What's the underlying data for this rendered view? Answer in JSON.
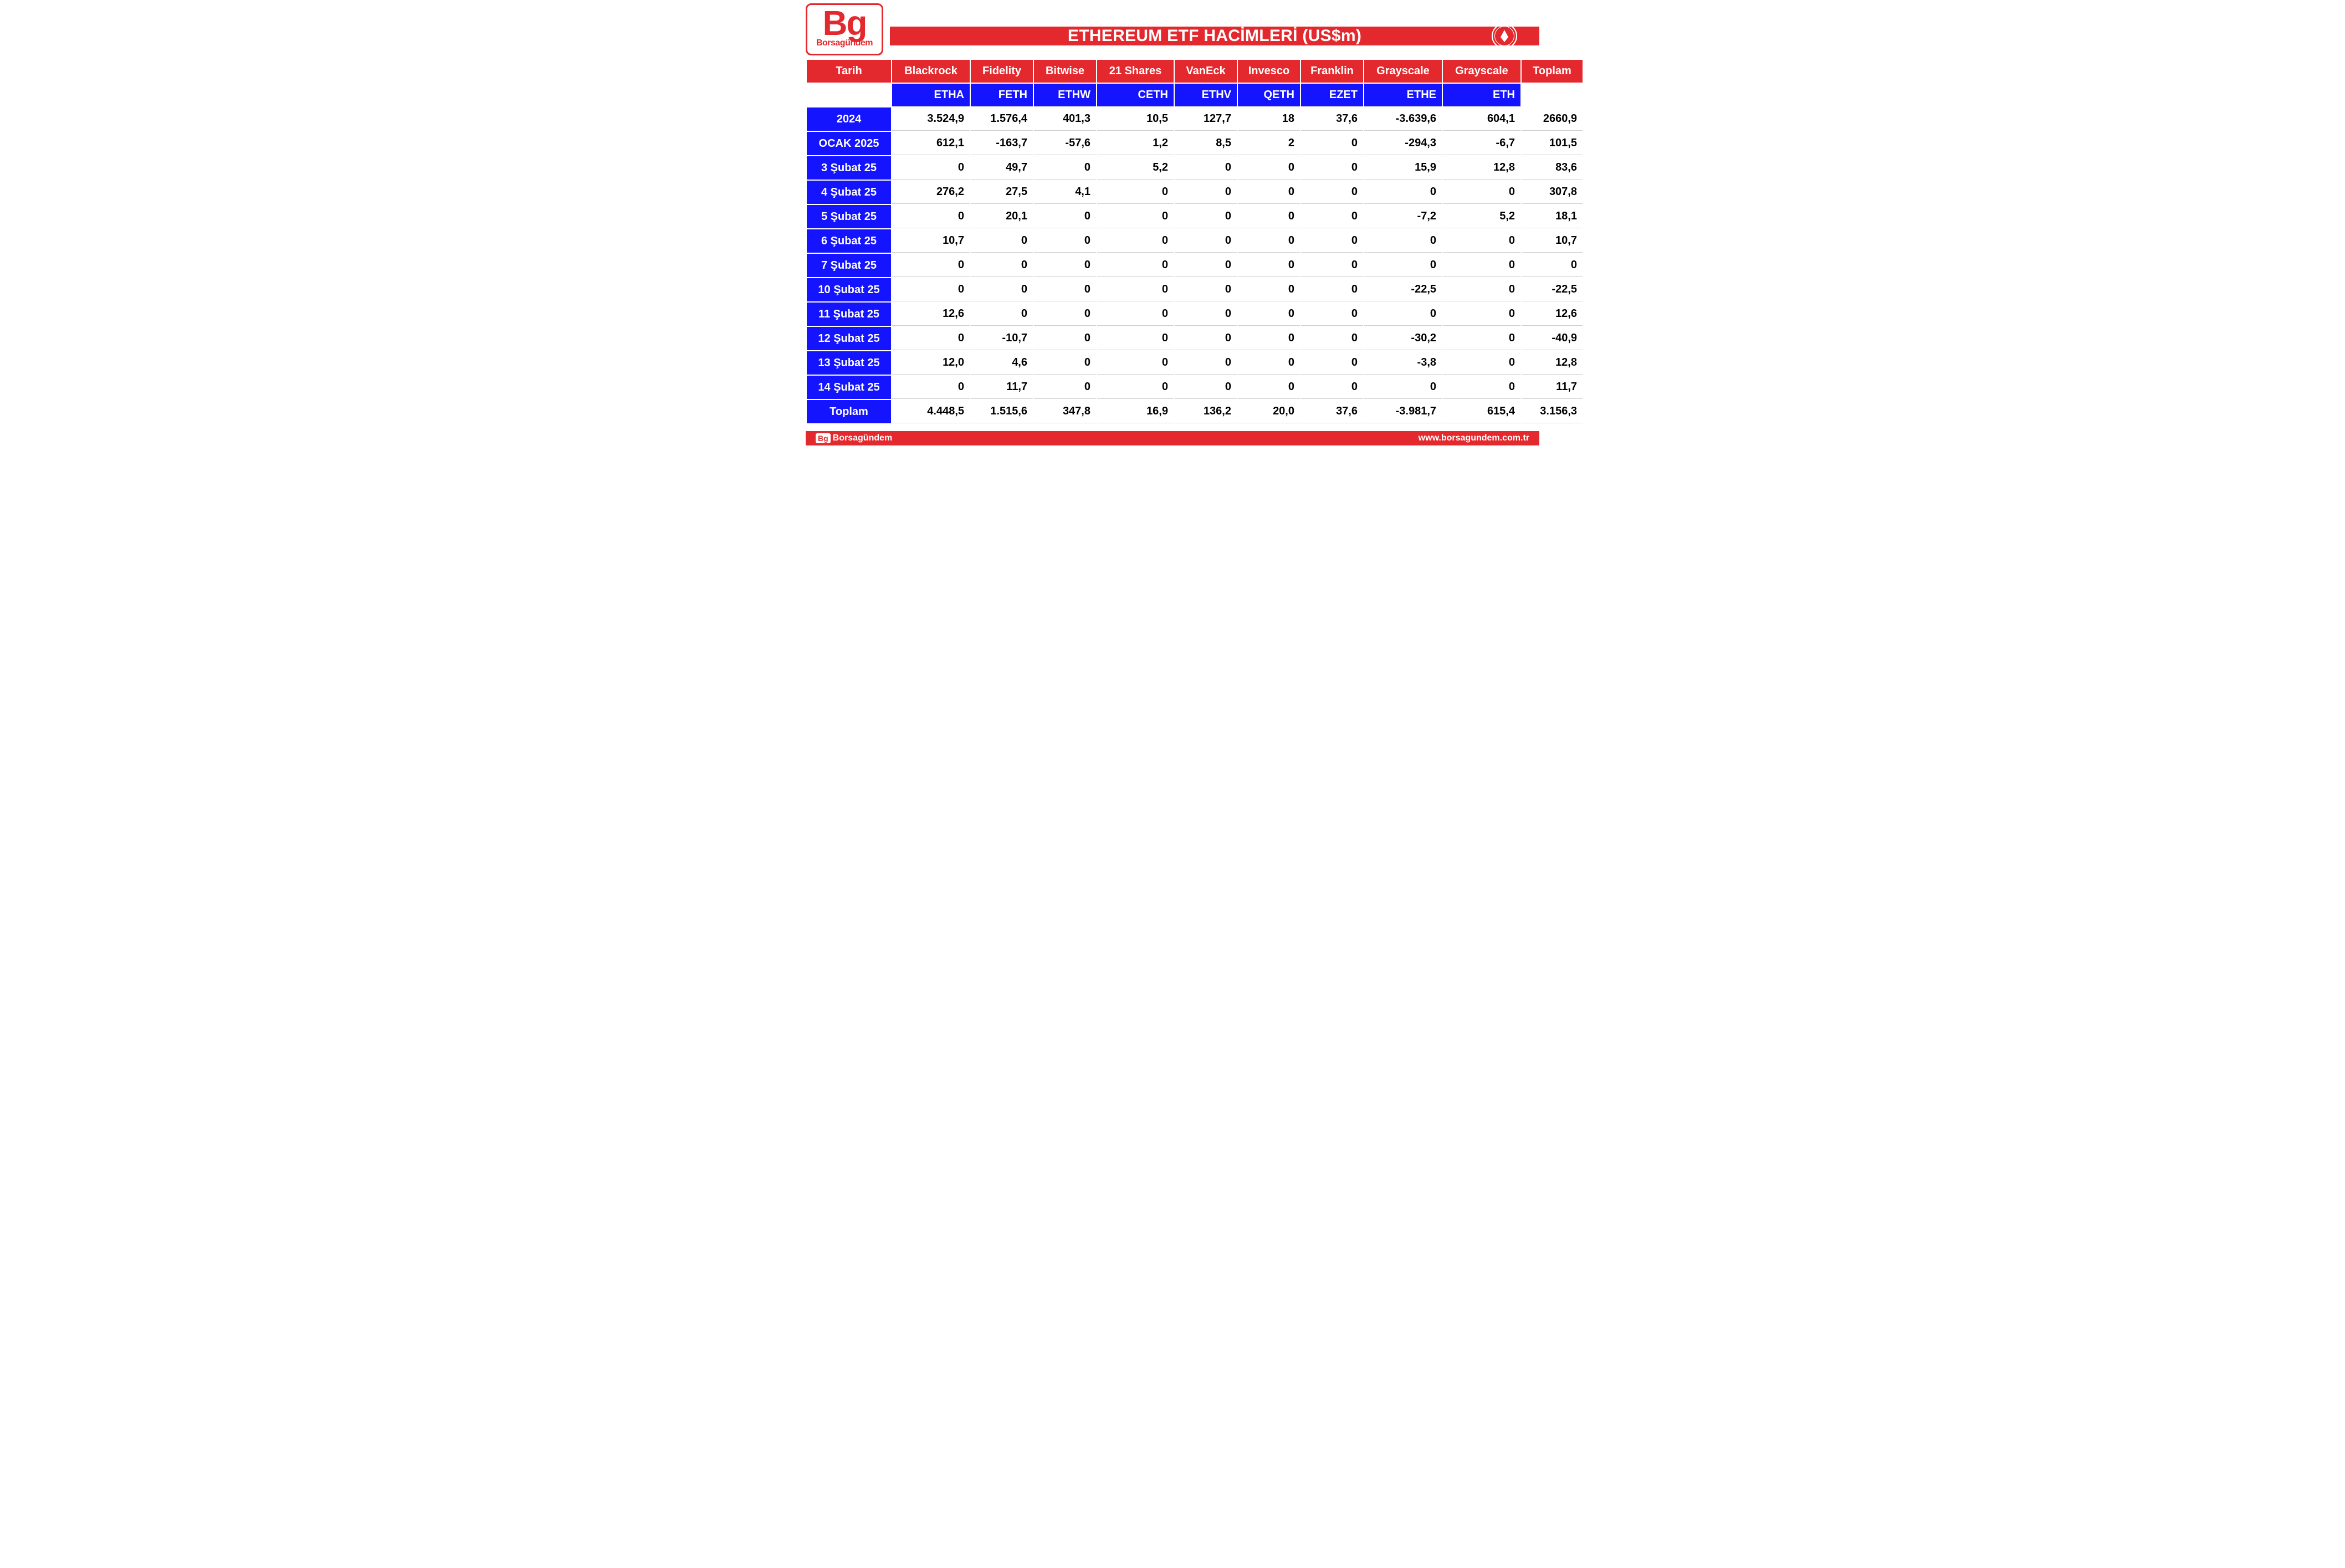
{
  "brand": {
    "logo_main": "Bg",
    "logo_sub": "Borsagündem",
    "title": "ETHEREUM ETF HACİMLERİ (US$m)",
    "badge": "ethereum-icon"
  },
  "table": {
    "header_row1": [
      "Tarih",
      "Blackrock",
      "Fidelity",
      "Bitwise",
      "21 Shares",
      "VanEck",
      "Invesco",
      "Franklin",
      "Grayscale",
      "Grayscale",
      "Toplam"
    ],
    "header_row2_blank_first": true,
    "header_row2_blank_last": true,
    "header_row2": [
      "ETHA",
      "FETH",
      "ETHW",
      "CETH",
      "ETHV",
      "QETH",
      "EZET",
      "ETHE",
      "ETH"
    ],
    "rows": [
      {
        "date": "2024",
        "vals": [
          "3.524,9",
          "1.576,4",
          "401,3",
          "10,5",
          "127,7",
          "18",
          "37,6",
          "-3.639,6",
          "604,1",
          "2660,9"
        ]
      },
      {
        "date": "OCAK 2025",
        "vals": [
          "612,1",
          "-163,7",
          "-57,6",
          "1,2",
          "8,5",
          "2",
          "0",
          "-294,3",
          "-6,7",
          "101,5"
        ]
      },
      {
        "date": "3 Şubat 25",
        "vals": [
          "0",
          "49,7",
          "0",
          "5,2",
          "0",
          "0",
          "0",
          "15,9",
          "12,8",
          "83,6"
        ]
      },
      {
        "date": "4 Şubat 25",
        "vals": [
          "276,2",
          "27,5",
          "4,1",
          "0",
          "0",
          "0",
          "0",
          "0",
          "0",
          "307,8"
        ]
      },
      {
        "date": "5 Şubat 25",
        "vals": [
          "0",
          "20,1",
          "0",
          "0",
          "0",
          "0",
          "0",
          "-7,2",
          "5,2",
          "18,1"
        ]
      },
      {
        "date": "6 Şubat 25",
        "vals": [
          "10,7",
          "0",
          "0",
          "0",
          "0",
          "0",
          "0",
          "0",
          "0",
          "10,7"
        ]
      },
      {
        "date": "7 Şubat 25",
        "vals": [
          "0",
          "0",
          "0",
          "0",
          "0",
          "0",
          "0",
          "0",
          "0",
          "0"
        ]
      },
      {
        "date": "10 Şubat 25",
        "vals": [
          "0",
          "0",
          "0",
          "0",
          "0",
          "0",
          "0",
          "-22,5",
          "0",
          "-22,5"
        ]
      },
      {
        "date": "11 Şubat 25",
        "vals": [
          "12,6",
          "0",
          "0",
          "0",
          "0",
          "0",
          "0",
          "0",
          "0",
          "12,6"
        ]
      },
      {
        "date": "12 Şubat 25",
        "vals": [
          "0",
          "-10,7",
          "0",
          "0",
          "0",
          "0",
          "0",
          "-30,2",
          "0",
          "-40,9"
        ]
      },
      {
        "date": "13 Şubat 25",
        "vals": [
          "12,0",
          "4,6",
          "0",
          "0",
          "0",
          "0",
          "0",
          "-3,8",
          "0",
          "12,8"
        ]
      },
      {
        "date": "14 Şubat 25",
        "vals": [
          "0",
          "11,7",
          "0",
          "0",
          "0",
          "0",
          "0",
          "0",
          "0",
          "11,7"
        ]
      },
      {
        "date": "Toplam",
        "vals": [
          "4.448,5",
          "1.515,6",
          "347,8",
          "16,9",
          "136,2",
          "20,0",
          "37,6",
          "-3.981,7",
          "615,4",
          "3.156,3"
        ]
      }
    ]
  },
  "footer": {
    "badge": "Bg",
    "brand": "Borsagündem",
    "url": "www.borsagundem.com.tr"
  },
  "colors": {
    "red": "#e3292e",
    "blue": "#1414ff",
    "white": "#ffffff",
    "black": "#000000",
    "grid": "#cfcfcf"
  }
}
